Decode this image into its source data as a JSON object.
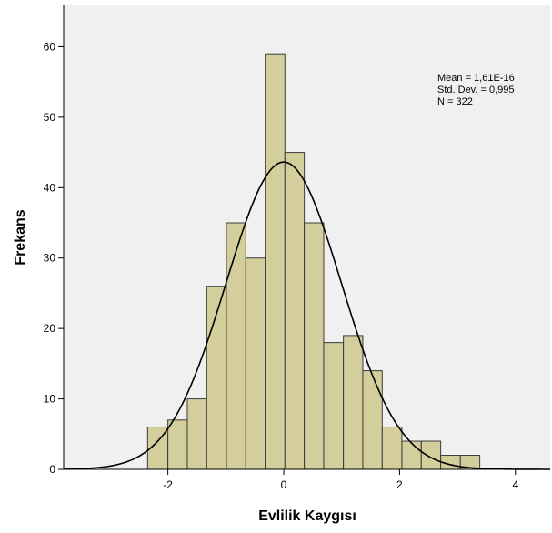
{
  "chart_data": {
    "type": "bar",
    "subtype": "histogram",
    "title": "",
    "xlabel": "Evlilik Kaygısı",
    "ylabel": "Frekans",
    "xlim": [
      -3.8,
      4.6
    ],
    "ylim": [
      0,
      66
    ],
    "xticks": [
      -2,
      0,
      2,
      4
    ],
    "xtick_labels": [
      "-2",
      "0",
      "2",
      "4"
    ],
    "yticks": [
      0,
      10,
      20,
      30,
      40,
      50,
      60
    ],
    "ytick_labels": [
      "0",
      "10",
      "20",
      "30",
      "40",
      "50",
      "60"
    ],
    "bin_edges": [
      -2.35,
      -2.0,
      -1.665,
      -1.33,
      -0.99,
      -0.655,
      -0.32,
      0.02,
      0.355,
      0.69,
      1.03,
      1.365,
      1.7,
      2.04,
      2.375,
      2.71,
      3.05,
      3.385
    ],
    "values": [
      6,
      7,
      10,
      26,
      35,
      30,
      59,
      45,
      35,
      18,
      19,
      14,
      6,
      4,
      4,
      2,
      2
    ],
    "normal_curve": {
      "mean": 0.0,
      "std": 0.995,
      "n": 322,
      "bin_width": 0.338
    },
    "stats": {
      "mean": "Mean = 1,61E-16",
      "std": "Std. Dev. = 0,995",
      "n": "N = 322"
    },
    "grid": false,
    "legend": "none",
    "colors": {
      "plot_background": "#f0f0f0",
      "bar_fill": "#d3ce9b",
      "bar_stroke": "#3c3c3c",
      "curve": "#000000",
      "axis": "#000000"
    }
  }
}
